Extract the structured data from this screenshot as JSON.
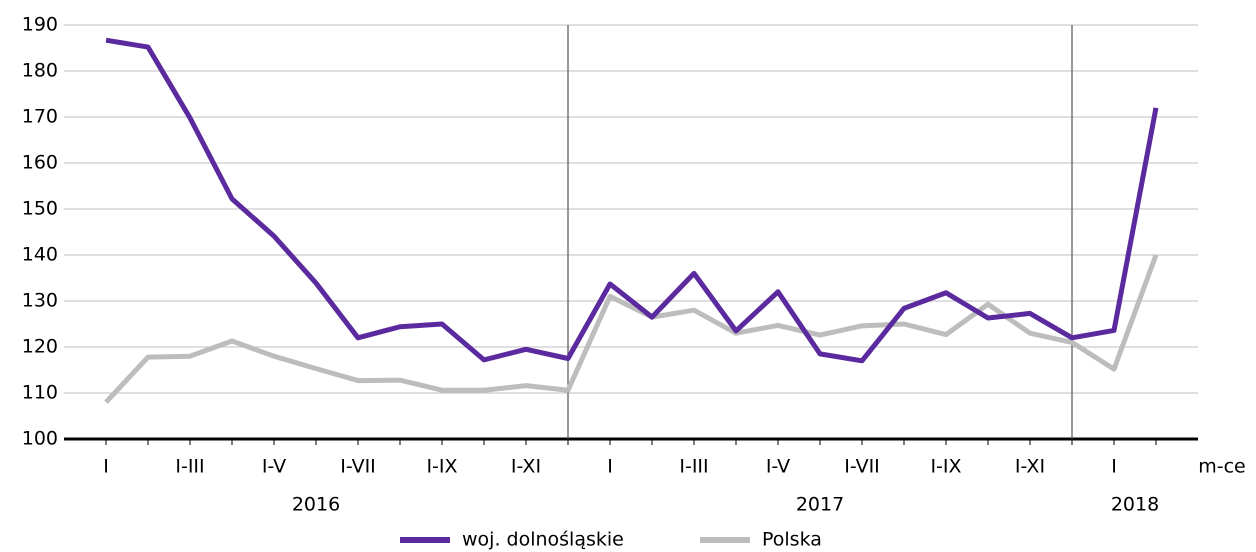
{
  "chart_data": {
    "type": "line",
    "categories": [
      "I",
      null,
      "I-III",
      null,
      "I-V",
      null,
      "I-VII",
      null,
      "I-IX",
      null,
      "I-XI",
      null,
      "I",
      null,
      "I-III",
      null,
      "I-V",
      null,
      "I-VII",
      null,
      "I-IX",
      null,
      "I-XI",
      null,
      "I",
      null
    ],
    "groups": [
      {
        "name": "2016",
        "count": 12
      },
      {
        "name": "2017",
        "count": 12
      },
      {
        "name": "2018",
        "count": 2
      }
    ],
    "x_label": "m-ce",
    "series": [
      {
        "name": "woj. dolnośląskie",
        "color": "#5b2a9e",
        "values": [
          186.7,
          185.2,
          169.8,
          152.2,
          144.1,
          133.9,
          122,
          124.4,
          125,
          117.2,
          119.5,
          117.5,
          133.7,
          126.5,
          136,
          123.5,
          132,
          118.5,
          117,
          128.4,
          131.8,
          126.3,
          127.3,
          122,
          123.6,
          172
        ]
      },
      {
        "name": "Polska",
        "color": "#bdbdbd",
        "values": [
          108,
          117.8,
          118,
          121.3,
          118,
          115.3,
          112.7,
          112.8,
          110.6,
          110.6,
          111.6,
          110.6,
          131,
          126.5,
          128,
          123,
          124.7,
          122.6,
          124.6,
          125,
          122.7,
          129.3,
          123,
          121,
          115.2,
          140
        ]
      }
    ],
    "ylim": [
      100,
      190
    ],
    "yticks": [
      100,
      110,
      120,
      130,
      140,
      150,
      160,
      170,
      180,
      190
    ],
    "grid": true
  }
}
